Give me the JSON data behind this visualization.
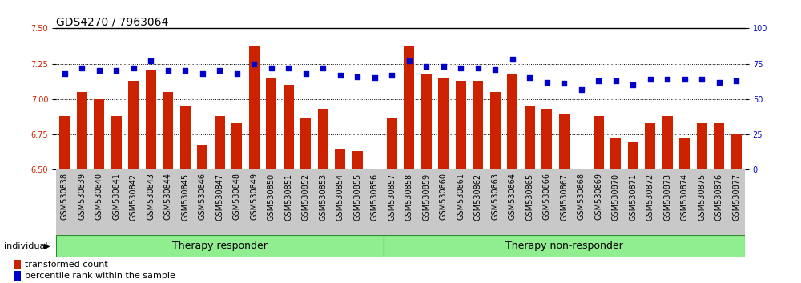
{
  "title": "GDS4270 / 7963064",
  "samples": [
    "GSM530838",
    "GSM530839",
    "GSM530840",
    "GSM530841",
    "GSM530842",
    "GSM530843",
    "GSM530844",
    "GSM530845",
    "GSM530846",
    "GSM530847",
    "GSM530848",
    "GSM530849",
    "GSM530850",
    "GSM530851",
    "GSM530852",
    "GSM530853",
    "GSM530854",
    "GSM530855",
    "GSM530856",
    "GSM530857",
    "GSM530858",
    "GSM530859",
    "GSM530860",
    "GSM530861",
    "GSM530862",
    "GSM530863",
    "GSM530864",
    "GSM530865",
    "GSM530866",
    "GSM530867",
    "GSM530868",
    "GSM530869",
    "GSM530870",
    "GSM530871",
    "GSM530872",
    "GSM530873",
    "GSM530874",
    "GSM530875",
    "GSM530876",
    "GSM530877"
  ],
  "bar_values": [
    6.88,
    7.05,
    7.0,
    6.88,
    7.13,
    7.2,
    7.05,
    6.95,
    6.68,
    6.88,
    6.83,
    7.38,
    7.15,
    7.1,
    6.87,
    6.93,
    6.65,
    6.63,
    6.5,
    6.87,
    7.38,
    7.18,
    7.15,
    7.13,
    7.13,
    7.05,
    7.18,
    6.95,
    6.93,
    6.9,
    6.5,
    6.88,
    6.73,
    6.7,
    6.83,
    6.88,
    6.72,
    6.83,
    6.83,
    6.75
  ],
  "percentile_values": [
    68,
    72,
    70,
    70,
    72,
    77,
    70,
    70,
    68,
    70,
    68,
    75,
    72,
    72,
    68,
    72,
    67,
    66,
    65,
    67,
    77,
    73,
    73,
    72,
    72,
    71,
    78,
    65,
    62,
    61,
    57,
    63,
    63,
    60,
    64,
    64,
    64,
    64,
    62,
    63
  ],
  "group1_label": "Therapy responder",
  "group2_label": "Therapy non-responder",
  "group1_count": 19,
  "group2_count": 21,
  "ylim_left": [
    6.5,
    7.5
  ],
  "ylim_right": [
    0,
    100
  ],
  "yticks_left": [
    6.5,
    6.75,
    7.0,
    7.25,
    7.5
  ],
  "yticks_right": [
    0,
    25,
    50,
    75,
    100
  ],
  "bar_color": "#cc2200",
  "dot_color": "#0000cc",
  "group_bg_color": "#90ee90",
  "group_border_color": "#2d8a2d",
  "sample_bg_color": "#c8c8c8",
  "individual_label": "individual",
  "legend_bar": "transformed count",
  "legend_dot": "percentile rank within the sample",
  "title_fontsize": 10,
  "axis_tick_fontsize": 7,
  "label_fontsize": 8,
  "group_label_fontsize": 9
}
